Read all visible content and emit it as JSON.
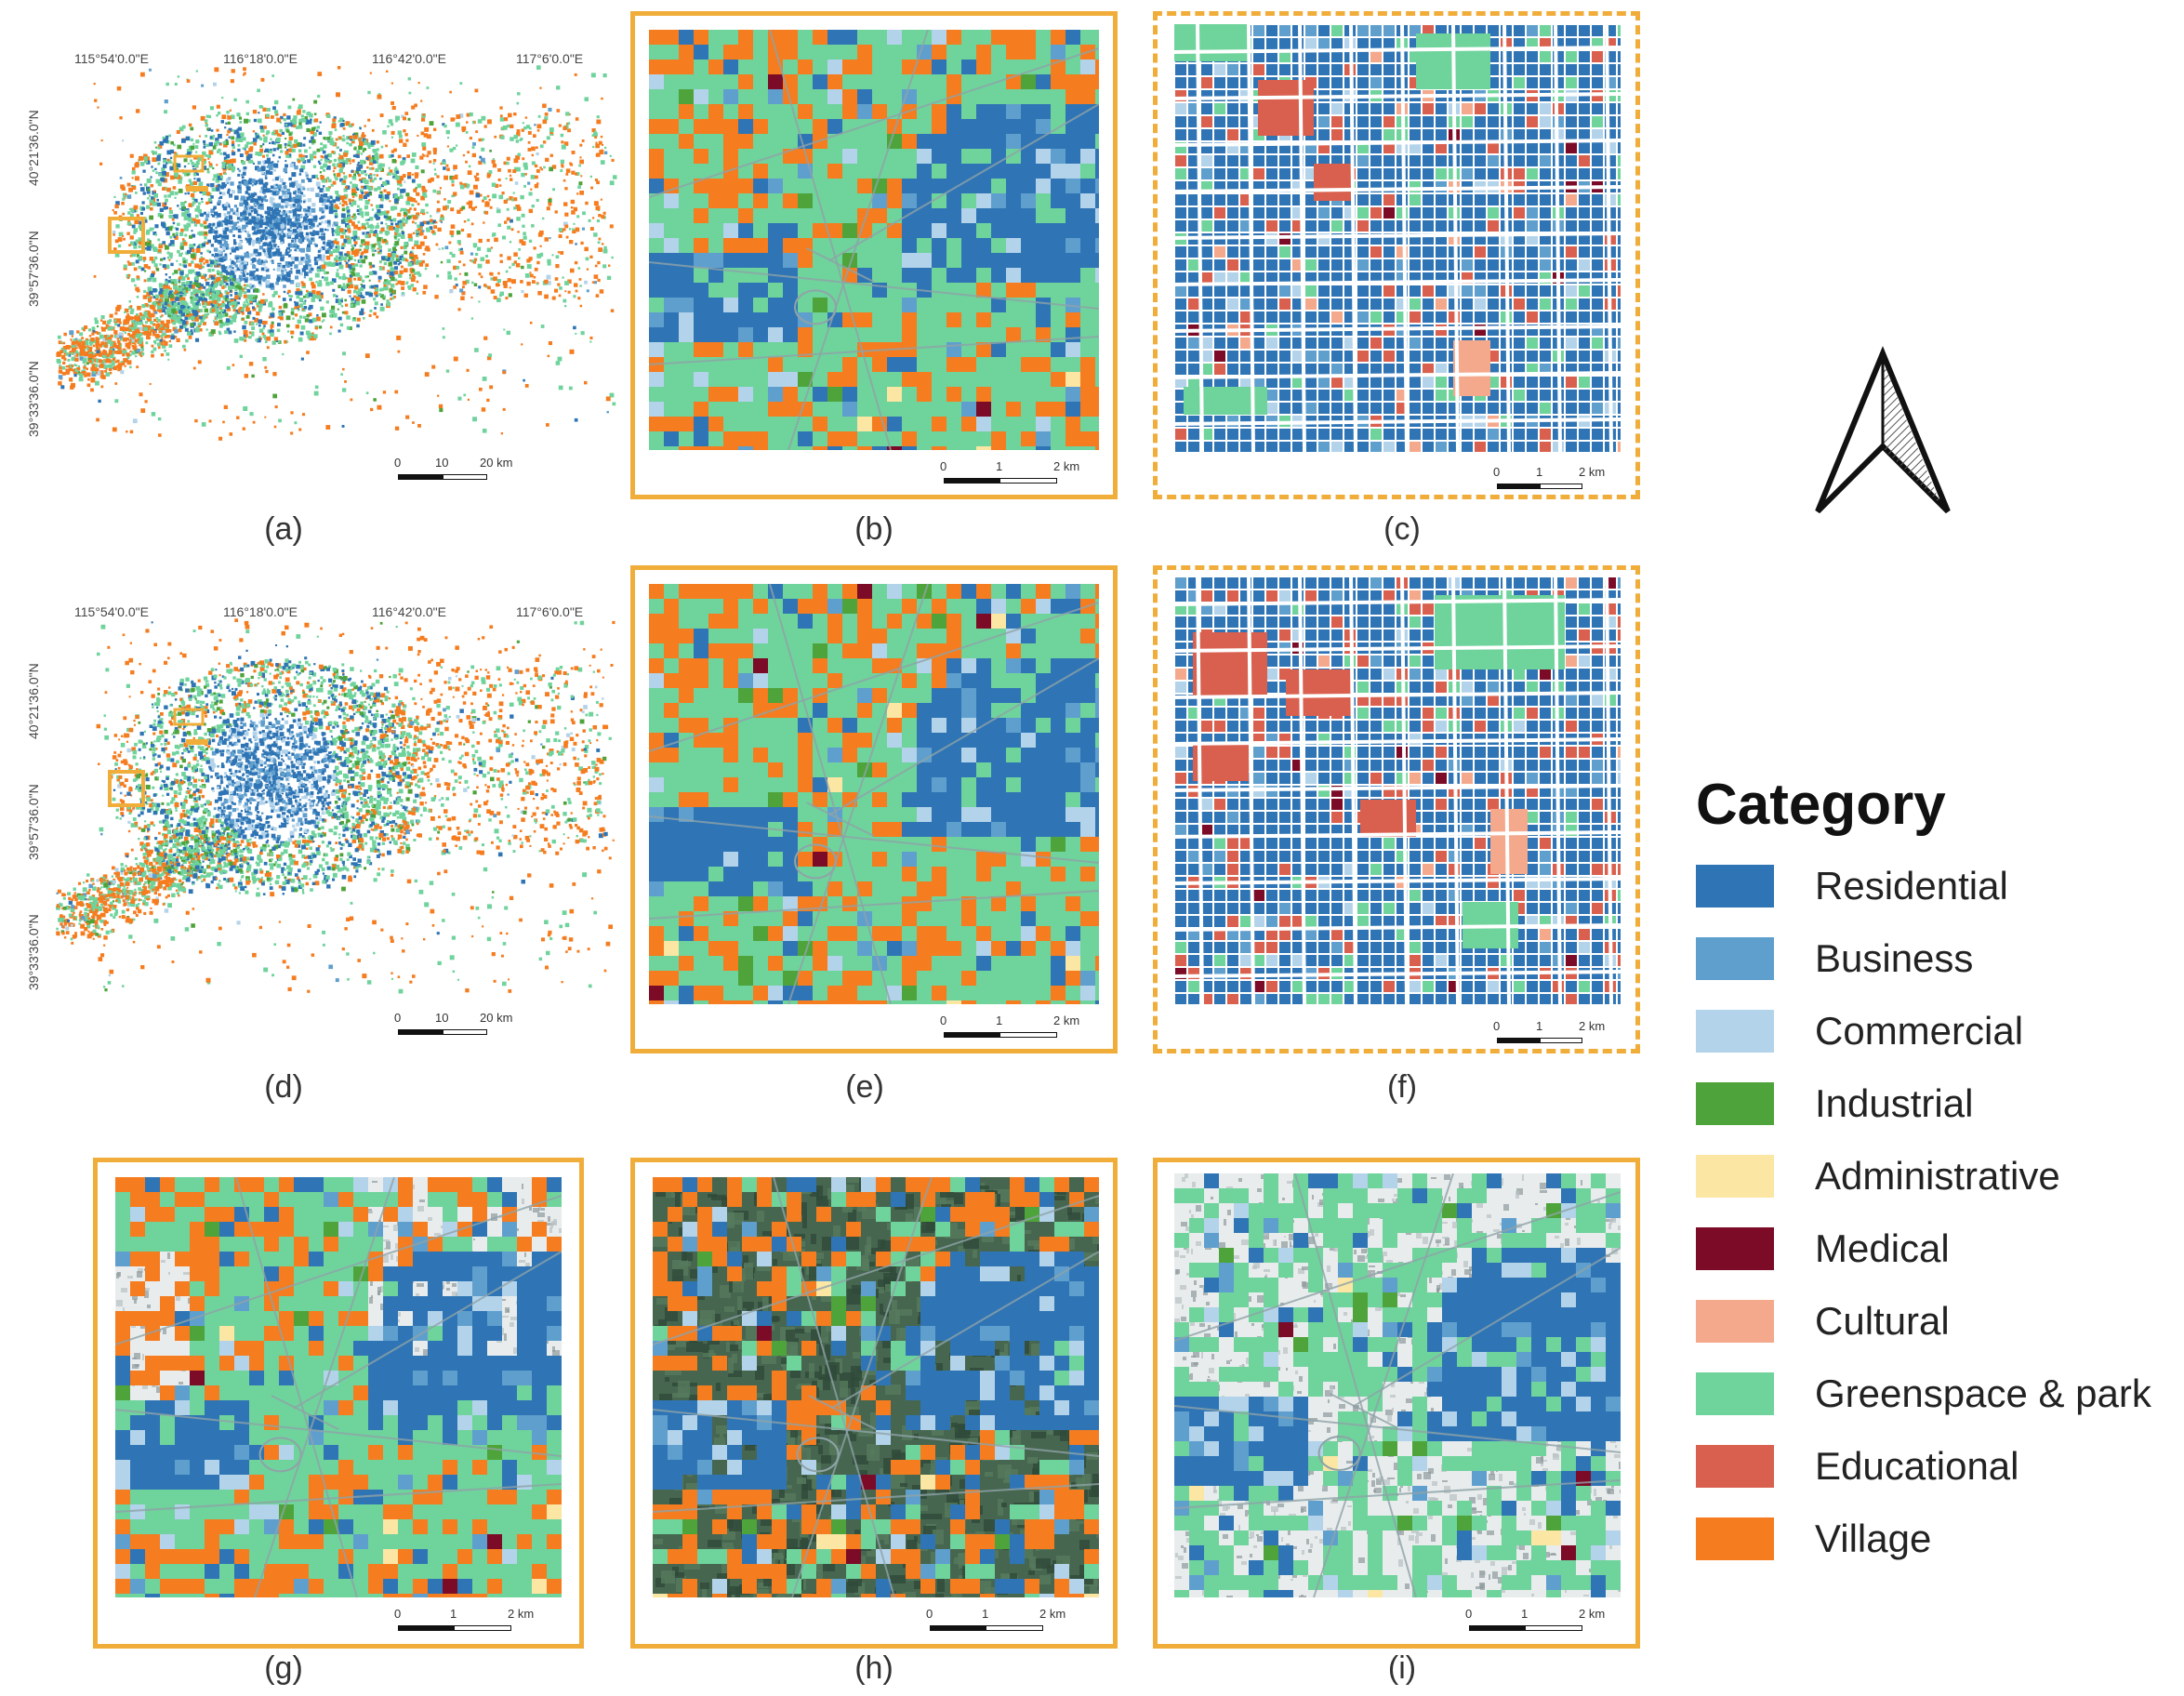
{
  "captions": [
    "(a)",
    "(b)",
    "(c)",
    "(d)",
    "(e)",
    "(f)",
    "(g)",
    "(h)",
    "(i)"
  ],
  "coords": {
    "lon": [
      "115°54'0.0\"E",
      "116°18'0.0\"E",
      "116°42'0.0\"E",
      "117°6'0.0\"E"
    ],
    "lat_a": [
      "40°21'36.0\"N",
      "39°57'36.0\"N",
      "39°33'36.0\"N"
    ],
    "lat_d": [
      "40°21'36.0\"N",
      "39°57'36.0\"N",
      "39°33'36.0\"N"
    ]
  },
  "scale_city": [
    "0",
    "10",
    "20 km"
  ],
  "scale_zoom": [
    "0",
    "1",
    "2 km"
  ],
  "legend": {
    "title": "Category",
    "items": [
      {
        "label": "Residential",
        "color": "#2f75b5"
      },
      {
        "label": "Business",
        "color": "#5f9fce"
      },
      {
        "label": "Commercial",
        "color": "#b3d3ea"
      },
      {
        "label": "Industrial",
        "color": "#4ea43a"
      },
      {
        "label": "Administrative",
        "color": "#fbe6a4"
      },
      {
        "label": "Medical",
        "color": "#7b0b27"
      },
      {
        "label": "Cultural",
        "color": "#f4a98c"
      },
      {
        "label": "Greenspace & park",
        "color": "#6fd39c"
      },
      {
        "label": "Educational",
        "color": "#d9604e"
      },
      {
        "label": "Village",
        "color": "#f57c1f"
      }
    ]
  },
  "north_arrow": "north-arrow-icon"
}
